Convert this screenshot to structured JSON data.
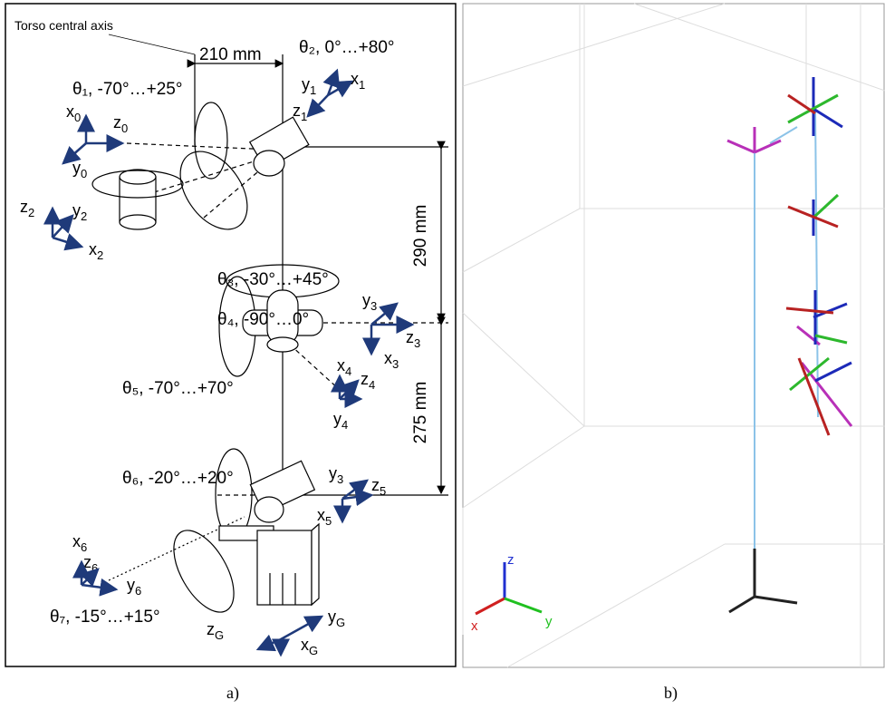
{
  "panel_a": {
    "torso_label": "Torso central axis",
    "dims": [
      "210 mm",
      "290 mm",
      "275 mm"
    ],
    "joints": [
      "θ₂, 0°…+80°",
      "θ₁, -70°…+25°",
      "θ₃, -30°…+45°",
      "θ₄, -90°…0°",
      "θ₅, -70°…+70°",
      "θ₆, -20°…+20°",
      "θ₇, -15°…+15°"
    ],
    "frame_labels": [
      {
        "a": "x",
        "s": "0"
      },
      {
        "a": "z",
        "s": "0"
      },
      {
        "a": "y",
        "s": "0"
      },
      {
        "a": "y",
        "s": "1"
      },
      {
        "a": "x",
        "s": "1"
      },
      {
        "a": "z",
        "s": "1"
      },
      {
        "a": "z",
        "s": "2"
      },
      {
        "a": "y",
        "s": "2"
      },
      {
        "a": "x",
        "s": "2"
      },
      {
        "a": "y",
        "s": "3"
      },
      {
        "a": "z",
        "s": "3"
      },
      {
        "a": "x",
        "s": "3"
      },
      {
        "a": "x",
        "s": "4"
      },
      {
        "a": "z",
        "s": "4"
      },
      {
        "a": "y",
        "s": "4"
      },
      {
        "a": "y",
        "s": "3"
      },
      {
        "a": "z",
        "s": "5"
      },
      {
        "a": "x",
        "s": "5"
      },
      {
        "a": "x",
        "s": "6"
      },
      {
        "a": "z",
        "s": "6"
      },
      {
        "a": "y",
        "s": "6"
      },
      {
        "a": "y",
        "s": "G"
      },
      {
        "a": "z",
        "s": "G"
      },
      {
        "a": "x",
        "s": "G"
      }
    ],
    "caption": "a)"
  },
  "panel_b": {
    "axis_labels": [
      "z",
      "x",
      "y"
    ],
    "caption": "b)"
  }
}
